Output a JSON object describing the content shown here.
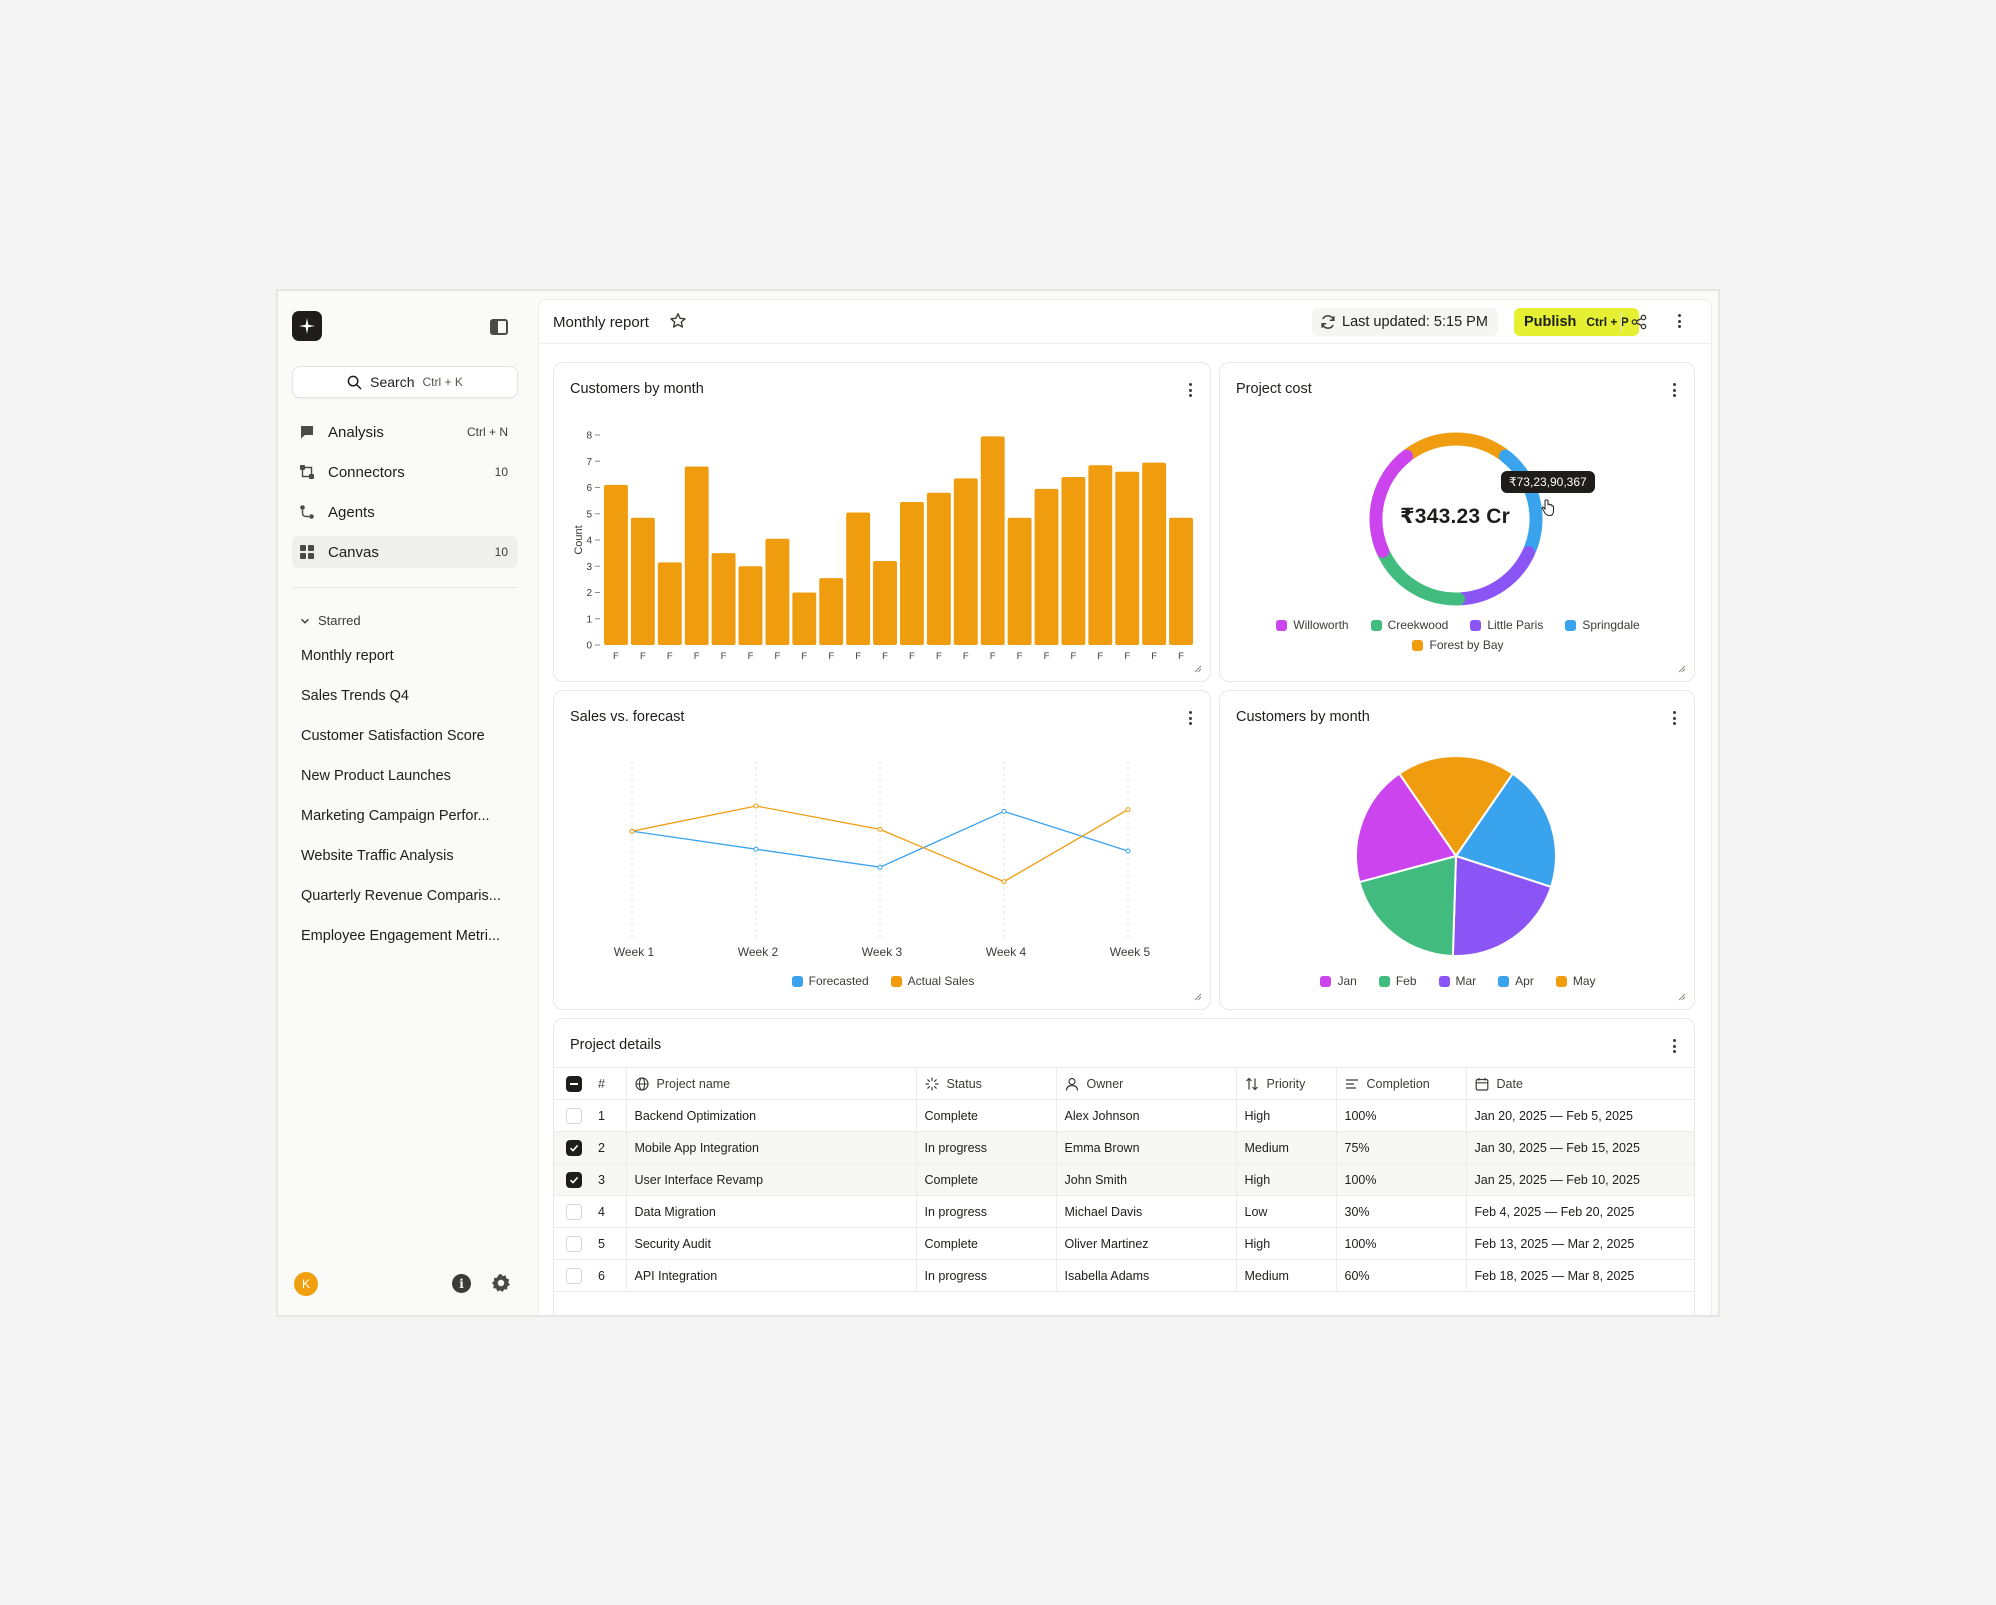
{
  "sidebar": {
    "search": {
      "label": "Search",
      "shortcut": "Ctrl + K"
    },
    "nav": [
      {
        "label": "Analysis",
        "meta": "Ctrl + N",
        "icon": "chat-bubble-icon"
      },
      {
        "label": "Connectors",
        "meta": "10",
        "icon": "connectors-icon"
      },
      {
        "label": "Agents",
        "meta": "",
        "icon": "agents-icon"
      },
      {
        "label": "Canvas",
        "meta": "10",
        "icon": "canvas-grid-icon",
        "active": true
      }
    ],
    "starred_heading": "Starred",
    "starred": [
      "Monthly report",
      "Sales Trends Q4",
      "Customer Satisfaction Score",
      "New Product Launches",
      "Marketing Campaign Perfor...",
      "Website Traffic Analysis",
      "Quarterly Revenue Comparis...",
      "Employee Engagement Metri..."
    ],
    "avatar_initial": "K"
  },
  "header": {
    "title": "Monthly report",
    "last_updated": "Last updated: 5:15 PM",
    "publish_label": "Publish",
    "publish_shortcut": "Ctrl + P"
  },
  "colors": {
    "accent_yellow": "#e5f032",
    "orange": "#f09c0f",
    "blue": "#3aa3ee",
    "green": "#42bb7e",
    "purple": "#8b55f6",
    "magenta": "#cc44ee"
  },
  "cards": {
    "bar_title": "Customers by month",
    "donut_title": "Project cost",
    "line_title": "Sales vs. forecast",
    "pie_title": "Customers by month",
    "table_title": "Project details"
  },
  "chart_data": [
    {
      "type": "bar",
      "title": "Customers by month",
      "ylabel": "Count",
      "ylim": [
        0,
        8
      ],
      "yticks": [
        0,
        1,
        2,
        3,
        4,
        5,
        6,
        7,
        8
      ],
      "categories": [
        "F",
        "F",
        "F",
        "F",
        "F",
        "F",
        "F",
        "F",
        "F",
        "F",
        "F",
        "F",
        "F",
        "F",
        "F",
        "F",
        "F",
        "F",
        "F",
        "F",
        "F",
        "F"
      ],
      "values": [
        6.1,
        4.85,
        3.15,
        6.8,
        3.5,
        3.0,
        4.05,
        2.0,
        2.55,
        5.05,
        3.2,
        5.45,
        5.8,
        6.35,
        7.95,
        4.85,
        5.95,
        6.4,
        6.85,
        6.6,
        6.95,
        4.85
      ],
      "color": "#f09c0f"
    },
    {
      "type": "donut",
      "title": "Project cost",
      "center_label": "₹343.23 Cr",
      "tooltip": "₹73,23,90,367",
      "segments": [
        {
          "name": "Forest by Bay",
          "value": 20.5,
          "color": "#f09c0f"
        },
        {
          "name": "Springdale",
          "value": 21.3,
          "color": "#3aa3ee"
        },
        {
          "name": "Little Paris",
          "value": 17.6,
          "color": "#8b55f6"
        },
        {
          "name": "Creekwood",
          "value": 18.9,
          "color": "#42bb7e"
        },
        {
          "name": "Willoworth",
          "value": 21.7,
          "color": "#cc44ee"
        }
      ],
      "legend": [
        {
          "name": "Willoworth",
          "color": "#cc44ee"
        },
        {
          "name": "Creekwood",
          "color": "#42bb7e"
        },
        {
          "name": "Little Paris",
          "color": "#8b55f6"
        },
        {
          "name": "Springdale",
          "color": "#3aa3ee"
        },
        {
          "name": "Forest by Bay",
          "color": "#f09c0f"
        }
      ]
    },
    {
      "type": "line",
      "title": "Sales vs. forecast",
      "categories": [
        "Week 1",
        "Week 2",
        "Week 3",
        "Week 4",
        "Week 5"
      ],
      "ylim": [
        0,
        10
      ],
      "series": [
        {
          "name": "Forecasted",
          "color": "#3aa3ee",
          "values": [
            6.1,
            5.1,
            4.1,
            7.2,
            5.0
          ]
        },
        {
          "name": "Actual Sales",
          "color": "#f09c0f",
          "values": [
            6.1,
            7.5,
            6.2,
            3.3,
            7.3
          ]
        }
      ]
    },
    {
      "type": "pie",
      "title": "Customers by month",
      "slices": [
        {
          "name": "May",
          "value": 19.2,
          "color": "#f09c0f"
        },
        {
          "name": "Apr",
          "value": 20.4,
          "color": "#3aa3ee"
        },
        {
          "name": "Mar",
          "value": 20.5,
          "color": "#8b55f6"
        },
        {
          "name": "Feb",
          "value": 20.3,
          "color": "#42bb7e"
        },
        {
          "name": "Jan",
          "value": 19.6,
          "color": "#cc44ee"
        }
      ],
      "legend": [
        {
          "name": "Jan",
          "color": "#cc44ee"
        },
        {
          "name": "Feb",
          "color": "#42bb7e"
        },
        {
          "name": "Mar",
          "color": "#8b55f6"
        },
        {
          "name": "Apr",
          "color": "#3aa3ee"
        },
        {
          "name": "May",
          "color": "#f09c0f"
        }
      ]
    }
  ],
  "table": {
    "columns": [
      "#",
      "Project name",
      "Status",
      "Owner",
      "Priority",
      "Completion",
      "Date"
    ],
    "rows": [
      {
        "n": "1",
        "name": "Backend Optimization",
        "status": "Complete",
        "owner": "Alex Johnson",
        "priority": "High",
        "completion": "100%",
        "date": "Jan 20, 2025 — Feb 5, 2025",
        "checked": false
      },
      {
        "n": "2",
        "name": "Mobile App Integration",
        "status": "In progress",
        "owner": "Emma Brown",
        "priority": "Medium",
        "completion": "75%",
        "date": "Jan 30, 2025 — Feb 15, 2025",
        "checked": true
      },
      {
        "n": "3",
        "name": "User Interface Revamp",
        "status": "Complete",
        "owner": "John Smith",
        "priority": "High",
        "completion": "100%",
        "date": "Jan 25, 2025 — Feb 10, 2025",
        "checked": true
      },
      {
        "n": "4",
        "name": "Data Migration",
        "status": "In progress",
        "owner": "Michael Davis",
        "priority": "Low",
        "completion": "30%",
        "date": "Feb 4, 2025 — Feb 20, 2025",
        "checked": false
      },
      {
        "n": "5",
        "name": "Security Audit",
        "status": "Complete",
        "owner": "Oliver Martinez",
        "priority": "High",
        "completion": "100%",
        "date": "Feb 13, 2025 — Mar 2, 2025",
        "checked": false
      },
      {
        "n": "6",
        "name": "API Integration",
        "status": "In progress",
        "owner": "Isabella Adams",
        "priority": "Medium",
        "completion": "60%",
        "date": "Feb 18, 2025 — Mar 8, 2025",
        "checked": false
      }
    ]
  }
}
